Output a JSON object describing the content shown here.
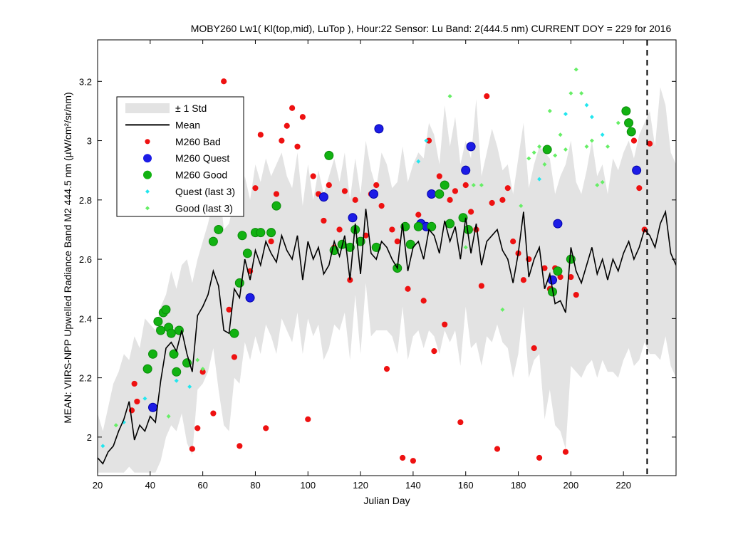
{
  "chart_data": {
    "type": "scatter",
    "title": "MOBY260   Lw1( Kl(top,mid), LuTop ),   Hour:22 Sensor: Lu Band: 2(444.5 nm)   CURRENT DOY = 229 for 2016",
    "xlabel": "Julian Day",
    "ylabel": "MEAN: VIIRS-NPP Upwelled Radiance Band M2 444.5 nm (µW/cm²/sr/nm)",
    "xlim": [
      20,
      240
    ],
    "ylim": [
      1.87,
      3.34
    ],
    "xticks": [
      20,
      40,
      60,
      80,
      100,
      120,
      140,
      160,
      180,
      200,
      220
    ],
    "yticks": [
      2,
      2.2,
      2.4,
      2.6,
      2.8,
      3,
      3.2
    ],
    "xtick_labels": [
      "20",
      "40",
      "60",
      "80",
      "100",
      "120",
      "140",
      "160",
      "180",
      "200",
      "220"
    ],
    "ytick_labels": [
      "2",
      "2.2",
      "2.4",
      "2.6",
      "2.8",
      "3",
      "3.2"
    ],
    "current_doy": 229,
    "legend_position": "top-left",
    "legend": [
      {
        "label": "± 1 Std",
        "kind": "band",
        "color": "#e3e3e3"
      },
      {
        "label": "Mean",
        "kind": "line",
        "color": "#000000"
      },
      {
        "label": "M260 Bad",
        "kind": "dot-small",
        "color": "#ee1111"
      },
      {
        "label": "M260 Quest",
        "kind": "dot-big",
        "color": "#1c1ce6"
      },
      {
        "label": "M260 Good",
        "kind": "dot-big",
        "color": "#12b212"
      },
      {
        "label": "Quest (last 3)",
        "kind": "diamond",
        "color": "#22e6ee"
      },
      {
        "label": "Good (last 3)",
        "kind": "diamond",
        "color": "#66ee66"
      }
    ],
    "series": [
      {
        "name": "Mean",
        "x": [
          20,
          22,
          24,
          26,
          28,
          30,
          32,
          34,
          36,
          38,
          40,
          42,
          44,
          46,
          48,
          50,
          52,
          54,
          56,
          58,
          60,
          62,
          64,
          66,
          68,
          70,
          72,
          74,
          76,
          78,
          80,
          82,
          84,
          86,
          88,
          90,
          92,
          94,
          96,
          98,
          100,
          102,
          104,
          106,
          108,
          110,
          112,
          114,
          116,
          118,
          120,
          122,
          124,
          126,
          128,
          130,
          132,
          134,
          136,
          138,
          140,
          142,
          144,
          146,
          148,
          150,
          152,
          154,
          156,
          158,
          160,
          162,
          164,
          166,
          168,
          170,
          172,
          174,
          176,
          178,
          180,
          182,
          184,
          186,
          188,
          190,
          192,
          194,
          196,
          198,
          200,
          202,
          204,
          206,
          208,
          210,
          212,
          214,
          216,
          218,
          220,
          222,
          224,
          226,
          228,
          230,
          232,
          234,
          236,
          238,
          240
        ],
        "y": [
          1.93,
          1.91,
          1.95,
          1.97,
          2.02,
          2.06,
          2.12,
          1.99,
          2.04,
          2.02,
          2.07,
          2.05,
          2.19,
          2.3,
          2.32,
          2.29,
          2.36,
          2.28,
          2.22,
          2.41,
          2.44,
          2.48,
          2.56,
          2.51,
          2.36,
          2.35,
          2.5,
          2.47,
          2.6,
          2.53,
          2.63,
          2.58,
          2.66,
          2.62,
          2.59,
          2.68,
          2.63,
          2.6,
          2.68,
          2.53,
          2.66,
          2.6,
          2.64,
          2.55,
          2.58,
          2.66,
          2.61,
          2.68,
          2.53,
          2.72,
          2.55,
          2.77,
          2.62,
          2.6,
          2.66,
          2.64,
          2.6,
          2.57,
          2.72,
          2.56,
          2.64,
          2.66,
          2.6,
          2.7,
          2.68,
          2.62,
          2.73,
          2.66,
          2.71,
          2.6,
          2.74,
          2.62,
          2.72,
          2.58,
          2.66,
          2.68,
          2.7,
          2.63,
          2.6,
          2.52,
          2.62,
          2.76,
          2.54,
          2.6,
          2.64,
          2.5,
          2.55,
          2.45,
          2.46,
          2.42,
          2.64,
          2.56,
          2.52,
          2.58,
          2.64,
          2.55,
          2.6,
          2.53,
          2.6,
          2.56,
          2.62,
          2.66,
          2.6,
          2.64,
          2.7,
          2.68,
          2.64,
          2.72,
          2.76,
          2.62,
          2.58
        ]
      },
      {
        "name": "M260 Bad",
        "x": [
          33,
          34,
          35,
          56,
          58,
          60,
          64,
          68,
          70,
          72,
          74,
          78,
          80,
          82,
          84,
          86,
          88,
          90,
          92,
          94,
          96,
          98,
          100,
          102,
          104,
          106,
          108,
          110,
          112,
          114,
          116,
          118,
          120,
          122,
          124,
          126,
          128,
          130,
          132,
          134,
          136,
          138,
          140,
          142,
          144,
          146,
          148,
          150,
          152,
          154,
          156,
          158,
          160,
          162,
          164,
          166,
          168,
          170,
          172,
          174,
          176,
          178,
          180,
          182,
          184,
          186,
          188,
          190,
          192,
          194,
          196,
          198,
          200,
          202,
          222,
          224,
          226,
          228,
          230
        ],
        "y": [
          2.09,
          2.18,
          2.12,
          1.96,
          2.03,
          2.22,
          2.08,
          3.2,
          2.43,
          2.27,
          1.97,
          2.56,
          2.84,
          3.02,
          2.03,
          2.66,
          2.82,
          3.0,
          3.05,
          3.11,
          2.98,
          3.08,
          2.06,
          2.88,
          2.82,
          2.73,
          2.85,
          2.64,
          2.7,
          2.83,
          2.53,
          2.8,
          2.66,
          2.68,
          2.82,
          2.85,
          2.78,
          2.23,
          2.7,
          2.66,
          1.93,
          2.5,
          1.92,
          2.75,
          2.46,
          3.0,
          2.29,
          2.88,
          2.38,
          2.8,
          2.83,
          2.05,
          2.85,
          2.76,
          2.7,
          2.51,
          3.15,
          2.79,
          1.96,
          2.8,
          2.84,
          2.66,
          2.62,
          2.53,
          2.6,
          2.3,
          1.93,
          2.57,
          2.5,
          2.57,
          2.54,
          1.95,
          2.54,
          2.48,
          3.06,
          3.0,
          2.84,
          2.7,
          2.99
        ]
      },
      {
        "name": "M260 Quest",
        "x": [
          41,
          78,
          106,
          117,
          125,
          127,
          143,
          145,
          147,
          160,
          162,
          193,
          195,
          225
        ],
        "y": [
          2.1,
          2.47,
          2.81,
          2.74,
          2.82,
          3.04,
          2.72,
          2.71,
          2.82,
          2.9,
          2.98,
          2.53,
          2.72,
          2.9
        ]
      },
      {
        "name": "M260 Good",
        "x": [
          39,
          41,
          43,
          44,
          45,
          46,
          47,
          48,
          49,
          50,
          51,
          54,
          64,
          66,
          72,
          74,
          75,
          77,
          80,
          82,
          86,
          88,
          108,
          110,
          113,
          116,
          118,
          120,
          126,
          134,
          137,
          139,
          142,
          147,
          150,
          152,
          154,
          159,
          161,
          191,
          193,
          195,
          200,
          221,
          222,
          223
        ],
        "y": [
          2.23,
          2.28,
          2.39,
          2.36,
          2.42,
          2.43,
          2.37,
          2.35,
          2.28,
          2.22,
          2.36,
          2.25,
          2.66,
          2.7,
          2.35,
          2.52,
          2.68,
          2.62,
          2.69,
          2.69,
          2.69,
          2.78,
          2.95,
          2.63,
          2.65,
          2.64,
          2.7,
          2.66,
          2.64,
          2.57,
          2.71,
          2.65,
          2.71,
          2.71,
          2.82,
          2.85,
          2.72,
          2.74,
          2.7,
          2.97,
          2.49,
          2.56,
          2.6,
          3.1,
          3.06,
          3.03
        ]
      },
      {
        "name": "Quest (last 3)",
        "x": [
          22,
          30,
          38,
          50,
          55,
          142,
          145,
          188,
          191,
          198,
          206,
          208,
          212
        ],
        "y": [
          1.97,
          2.05,
          2.13,
          2.19,
          2.17,
          2.93,
          3.0,
          2.87,
          2.97,
          3.09,
          3.12,
          3.08,
          3.02
        ]
      },
      {
        "name": "Good (last 3)",
        "x": [
          27,
          47,
          58,
          60,
          143,
          154,
          160,
          163,
          166,
          174,
          181,
          184,
          186,
          188,
          190,
          192,
          194,
          196,
          198,
          200,
          202,
          204,
          206,
          208,
          210,
          212,
          214,
          218
        ],
        "y": [
          2.04,
          2.07,
          2.26,
          2.23,
          2.72,
          3.15,
          2.64,
          2.85,
          2.85,
          2.43,
          2.78,
          2.94,
          2.96,
          2.98,
          2.92,
          3.1,
          2.95,
          3.02,
          2.97,
          3.16,
          3.24,
          3.16,
          2.98,
          3.0,
          2.85,
          2.86,
          2.98,
          3.06
        ]
      }
    ],
    "std_band": {
      "x": [
        20,
        22,
        24,
        26,
        28,
        30,
        32,
        34,
        36,
        38,
        40,
        42,
        44,
        46,
        48,
        50,
        52,
        54,
        56,
        58,
        60,
        62,
        64,
        66,
        68,
        70,
        72,
        74,
        76,
        78,
        80,
        82,
        84,
        86,
        88,
        90,
        92,
        94,
        96,
        98,
        100,
        102,
        104,
        106,
        108,
        110,
        112,
        114,
        116,
        118,
        120,
        122,
        124,
        126,
        128,
        130,
        132,
        134,
        136,
        138,
        140,
        142,
        144,
        146,
        148,
        150,
        152,
        154,
        156,
        158,
        160,
        162,
        164,
        166,
        168,
        170,
        172,
        174,
        176,
        178,
        180,
        182,
        184,
        186,
        188,
        190,
        192,
        194,
        196,
        198,
        200,
        202,
        204,
        206,
        208,
        210,
        212,
        214,
        216,
        218,
        220,
        222,
        224,
        226,
        228,
        230,
        232,
        234,
        236,
        238,
        240
      ],
      "upper": [
        2.08,
        2.02,
        2.1,
        2.18,
        2.22,
        2.28,
        2.26,
        2.34,
        2.3,
        2.4,
        2.38,
        2.36,
        2.44,
        2.48,
        2.56,
        2.5,
        2.58,
        2.6,
        2.52,
        2.6,
        2.66,
        2.72,
        2.8,
        2.88,
        2.7,
        2.72,
        2.8,
        2.76,
        2.88,
        2.8,
        2.92,
        2.86,
        2.94,
        2.88,
        2.92,
        2.96,
        2.88,
        2.84,
        2.96,
        2.78,
        2.92,
        2.8,
        2.9,
        2.82,
        2.88,
        2.94,
        2.86,
        2.96,
        2.8,
        2.94,
        2.82,
        3.0,
        2.9,
        2.84,
        2.96,
        2.92,
        2.84,
        2.86,
        2.98,
        2.86,
        2.92,
        2.96,
        2.94,
        3.06,
        3.02,
        2.92,
        3.12,
        2.98,
        3.08,
        2.92,
        3.0,
        2.94,
        3.14,
        2.88,
        2.96,
        3.04,
        2.98,
        2.9,
        2.92,
        2.82,
        2.94,
        3.06,
        2.84,
        2.92,
        2.98,
        2.96,
        2.94,
        2.82,
        2.88,
        2.92,
        3.0,
        2.86,
        2.82,
        2.9,
        3.0,
        2.88,
        2.92,
        2.82,
        2.94,
        2.9,
        2.96,
        3.0,
        2.94,
        3.02,
        3.06,
        3.1,
        2.98,
        3.18,
        3.12,
        2.96,
        2.92
      ],
      "lower": [
        1.88,
        1.88,
        1.88,
        1.88,
        1.88,
        1.88,
        1.9,
        1.88,
        1.88,
        1.88,
        1.88,
        1.88,
        1.92,
        2.0,
        2.04,
        2.02,
        2.08,
        1.98,
        1.94,
        2.16,
        2.18,
        2.22,
        2.3,
        2.16,
        2.04,
        2.02,
        2.2,
        2.18,
        2.32,
        2.26,
        2.34,
        2.28,
        2.38,
        2.34,
        2.28,
        2.4,
        2.36,
        2.32,
        2.42,
        2.28,
        2.4,
        2.34,
        2.38,
        2.26,
        2.3,
        2.38,
        2.36,
        2.42,
        2.26,
        2.48,
        2.28,
        2.52,
        2.34,
        2.36,
        2.36,
        2.36,
        2.34,
        2.28,
        2.44,
        2.26,
        2.34,
        2.36,
        2.3,
        2.36,
        2.34,
        2.28,
        2.36,
        2.32,
        2.36,
        2.24,
        2.44,
        2.3,
        2.32,
        2.24,
        2.34,
        2.32,
        2.38,
        2.32,
        2.3,
        2.2,
        2.28,
        2.44,
        2.2,
        2.26,
        2.28,
        2.06,
        2.16,
        2.04,
        2.02,
        1.96,
        2.24,
        2.22,
        2.2,
        2.24,
        2.26,
        2.2,
        2.26,
        2.22,
        2.22,
        2.2,
        2.26,
        2.3,
        2.24,
        2.26,
        2.32,
        2.28,
        2.28,
        2.26,
        2.34,
        2.24,
        2.2
      ]
    }
  }
}
